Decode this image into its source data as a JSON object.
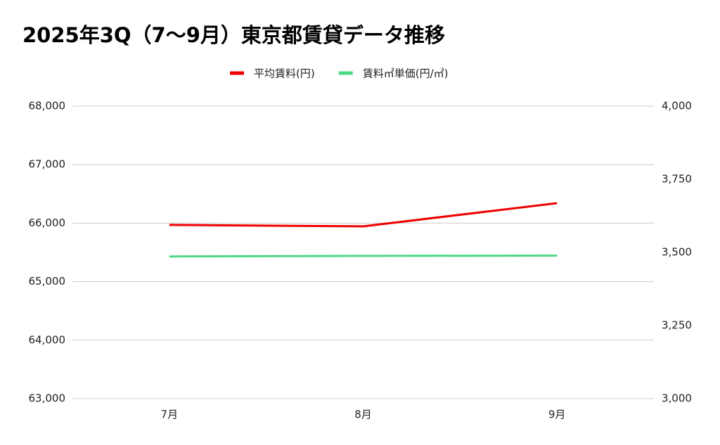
{
  "chart_data": {
    "type": "line",
    "title": "2025年3Q（7〜9月）東京都賃貸データ推移",
    "categories": [
      "7月",
      "8月",
      "9月"
    ],
    "series": [
      {
        "name": "平均賃料(円)",
        "color": "#ee0000",
        "values": [
          65970,
          65945,
          66341
        ]
      },
      {
        "name": "賃料㎡単価(円/㎡)",
        "color": "#4cd886",
        "values": [
          3486,
          3488,
          3489
        ],
        "axis": "y2"
      }
    ],
    "ylim": [
      63000,
      68000
    ],
    "yticks": [
      {
        "value": 63000,
        "label": "63,000"
      },
      {
        "value": 64000,
        "label": "64,000"
      },
      {
        "value": 65000,
        "label": "65,000"
      },
      {
        "value": 66000,
        "label": "66,000"
      },
      {
        "value": 67000,
        "label": "67,000"
      },
      {
        "value": 68000,
        "label": "68,000"
      }
    ],
    "y2lim": [
      3000,
      4000
    ],
    "y2ticks": [
      {
        "value": 3000,
        "label": "3,000"
      },
      {
        "value": 3250,
        "label": "3,250"
      },
      {
        "value": 3500,
        "label": "3,500"
      },
      {
        "value": 3750,
        "label": "3,750"
      },
      {
        "value": 4000,
        "label": "4,000"
      }
    ],
    "grid": true,
    "legend": "top"
  }
}
